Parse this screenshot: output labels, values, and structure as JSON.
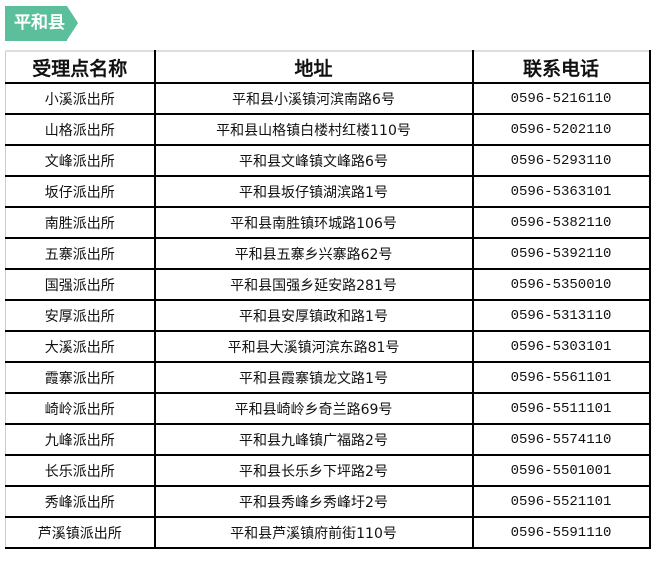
{
  "tag": {
    "label": "平和县",
    "color": "#5cbf9c"
  },
  "table": {
    "headers": [
      "受理点名称",
      "地址",
      "联系电话"
    ],
    "rows": [
      [
        "小溪派出所",
        "平和县小溪镇河滨南路6号",
        "0596-5216110"
      ],
      [
        "山格派出所",
        "平和县山格镇白楼村红楼110号",
        "0596-5202110"
      ],
      [
        "文峰派出所",
        "平和县文峰镇文峰路6号",
        "0596-5293110"
      ],
      [
        "坂仔派出所",
        "平和县坂仔镇湖滨路1号",
        "0596-5363101"
      ],
      [
        "南胜派出所",
        "平和县南胜镇环城路106号",
        "0596-5382110"
      ],
      [
        "五寨派出所",
        "平和县五寨乡兴寨路62号",
        "0596-5392110"
      ],
      [
        "国强派出所",
        "平和县国强乡延安路281号",
        "0596-5350010"
      ],
      [
        "安厚派出所",
        "平和县安厚镇政和路1号",
        "0596-5313110"
      ],
      [
        "大溪派出所",
        "平和县大溪镇河滨东路81号",
        "0596-5303101"
      ],
      [
        "霞寨派出所",
        "平和县霞寨镇龙文路1号",
        "0596-5561101"
      ],
      [
        "崎岭派出所",
        "平和县崎岭乡奇兰路69号",
        "0596-5511101"
      ],
      [
        "九峰派出所",
        "平和县九峰镇广福路2号",
        "0596-5574110"
      ],
      [
        "长乐派出所",
        "平和县长乐乡下坪路2号",
        "0596-5501001"
      ],
      [
        "秀峰派出所",
        "平和县秀峰乡秀峰圩2号",
        "0596-5521101"
      ],
      [
        "芦溪镇派出所",
        "平和县芦溪镇府前街110号",
        "0596-5591110"
      ]
    ]
  }
}
